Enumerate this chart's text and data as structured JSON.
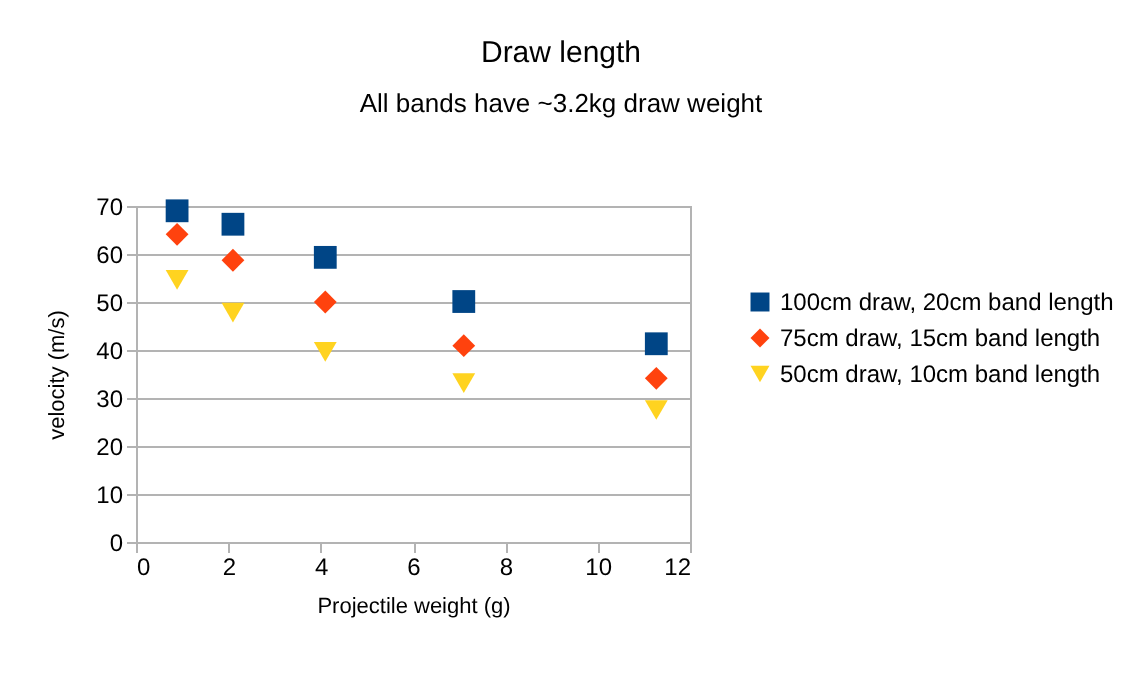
{
  "chart_data": {
    "type": "scatter",
    "title": "Draw length",
    "subtitle": "All bands have  ~3.2kg draw weight",
    "xlabel": "Projectile weight (g)",
    "ylabel": "velocity (m/s)",
    "x": [
      0.89,
      2.1,
      4.1,
      7.1,
      11.27
    ],
    "series": [
      {
        "name": "100cm draw, 20cm band length",
        "color": "#004586",
        "marker": "square",
        "values": [
          69,
          66.2,
          59.3,
          50.1,
          41.3
        ]
      },
      {
        "name": "75cm draw, 15cm band length",
        "color": "#ff420e",
        "marker": "diamond",
        "values": [
          64.1,
          58.7,
          50,
          40.9,
          34.1
        ]
      },
      {
        "name": "50cm draw, 10cm band length",
        "color": "#ffd320",
        "marker": "triangle",
        "values": [
          54.6,
          47.8,
          39.6,
          33.1,
          27.5
        ]
      }
    ],
    "xlim": [
      0,
      12
    ],
    "xticks": [
      0,
      2,
      4,
      6,
      8,
      10,
      12
    ],
    "ylim": [
      0,
      70
    ],
    "yticks": [
      0,
      10,
      20,
      30,
      40,
      50,
      60,
      70
    ],
    "grid": "y",
    "legend": "right"
  }
}
